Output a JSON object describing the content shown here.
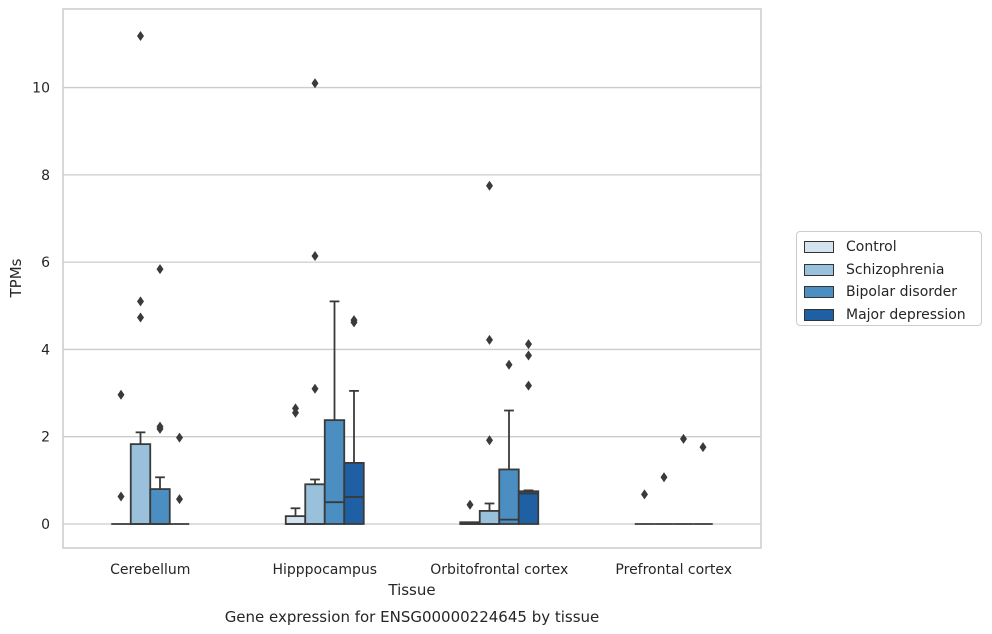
{
  "chart_data": {
    "type": "box",
    "title": "Gene expression for ENSG00000224645 by tissue",
    "xlabel": "Tissue",
    "ylabel": "TPMs",
    "ylim": [
      -0.55,
      11.8
    ],
    "yticks": [
      0,
      2,
      4,
      6,
      8,
      10
    ],
    "grid": "horizontal",
    "legend_placement": "right",
    "categories": [
      "Cerebellum",
      "Hipppocampus",
      "Orbitofrontal cortex",
      "Prefrontal cortex"
    ],
    "series": [
      {
        "name": "Control",
        "color": "#d4e3ef"
      },
      {
        "name": "Schizophrenia",
        "color": "#99c1dc"
      },
      {
        "name": "Bipolar disorder",
        "color": "#4a8ec2"
      },
      {
        "name": "Major depression",
        "color": "#1e60a3"
      }
    ],
    "boxes": [
      [
        {
          "q1": 0,
          "median": 0,
          "q3": 0,
          "whisker_low": 0,
          "whisker_high": 0,
          "outliers": [
            0.63,
            2.96
          ]
        },
        {
          "q1": 0,
          "median": 0,
          "q3": 1.83,
          "whisker_low": 0,
          "whisker_high": 2.1,
          "outliers": [
            11.18,
            5.1,
            4.73
          ]
        },
        {
          "q1": 0,
          "median": 0,
          "q3": 0.8,
          "whisker_low": 0,
          "whisker_high": 1.07,
          "outliers": [
            5.84,
            2.23,
            2.18
          ]
        },
        {
          "q1": 0,
          "median": 0,
          "q3": 0,
          "whisker_low": 0,
          "whisker_high": 0,
          "outliers": [
            1.98,
            0.57
          ]
        }
      ],
      [
        {
          "q1": 0,
          "median": 0,
          "q3": 0.18,
          "whisker_low": 0,
          "whisker_high": 0.36,
          "outliers": [
            2.65,
            2.55
          ]
        },
        {
          "q1": 0,
          "median": 0,
          "q3": 0.91,
          "whisker_low": 0,
          "whisker_high": 1.02,
          "outliers": [
            10.1,
            6.14,
            3.1
          ]
        },
        {
          "q1": 0,
          "median": 0.5,
          "q3": 2.38,
          "whisker_low": 0,
          "whisker_high": 5.1,
          "outliers": []
        },
        {
          "q1": 0,
          "median": 0.62,
          "q3": 1.4,
          "whisker_low": 0,
          "whisker_high": 3.05,
          "outliers": [
            4.67,
            4.62
          ]
        }
      ],
      [
        {
          "q1": 0,
          "median": 0,
          "q3": 0.04,
          "whisker_low": 0,
          "whisker_high": 0.04,
          "outliers": [
            0.44
          ]
        },
        {
          "q1": 0,
          "median": 0,
          "q3": 0.3,
          "whisker_low": 0,
          "whisker_high": 0.47,
          "outliers": [
            7.75,
            4.22,
            1.92
          ]
        },
        {
          "q1": 0,
          "median": 0.1,
          "q3": 1.25,
          "whisker_low": 0,
          "whisker_high": 2.6,
          "outliers": [
            3.65
          ]
        },
        {
          "q1": 0,
          "median": 0.7,
          "q3": 0.75,
          "whisker_low": 0,
          "whisker_high": 0.77,
          "outliers": [
            4.12,
            3.86,
            3.17
          ]
        }
      ],
      [
        {
          "q1": 0,
          "median": 0,
          "q3": 0,
          "whisker_low": 0,
          "whisker_high": 0,
          "outliers": [
            0.68
          ]
        },
        {
          "q1": 0,
          "median": 0,
          "q3": 0,
          "whisker_low": 0,
          "whisker_high": 0,
          "outliers": [
            1.07
          ]
        },
        {
          "q1": 0,
          "median": 0,
          "q3": 0,
          "whisker_low": 0,
          "whisker_high": 0,
          "outliers": [
            1.95
          ]
        },
        {
          "q1": 0,
          "median": 0,
          "q3": 0,
          "whisker_low": 0,
          "whisker_high": 0,
          "outliers": [
            1.76
          ]
        }
      ]
    ]
  }
}
